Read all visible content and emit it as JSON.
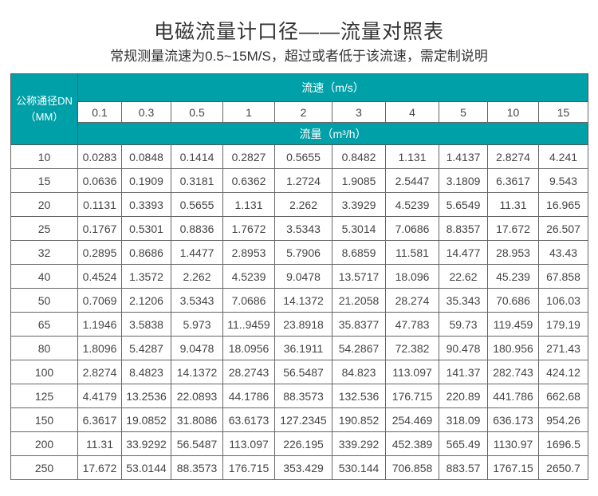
{
  "title": "电磁流量计口径——流量对照表",
  "subtitle": "常规测量流速为0.5~15M/S，超过或者低于该流速，需定制说明",
  "colors": {
    "header_bg": "#00a0a8",
    "header_text": "#ffffff",
    "border": "#666666"
  },
  "table": {
    "dn_header_line1": "公称通径DN",
    "dn_header_line2": "（MM）",
    "velocity_header": "流速（m/s）",
    "flow_header": "流量（m³/h）",
    "velocities": [
      "0.1",
      "0.3",
      "0.5",
      "1",
      "2",
      "3",
      "4",
      "5",
      "10",
      "15"
    ],
    "rows": [
      {
        "dn": "10",
        "values": [
          "0.0283",
          "0.0848",
          "0.1414",
          "0.2827",
          "0.5655",
          "0.8482",
          "1.131",
          "1.4137",
          "2.8274",
          "4.241"
        ]
      },
      {
        "dn": "15",
        "values": [
          "0.0636",
          "0.1909",
          "0.3181",
          "0.6362",
          "1.2724",
          "1.9085",
          "2.5447",
          "3.1809",
          "6.3617",
          "9.543"
        ]
      },
      {
        "dn": "20",
        "values": [
          "0.1131",
          "0.3393",
          "0.5655",
          "1.131",
          "2.262",
          "3.3929",
          "4.5239",
          "5.6549",
          "11.31",
          "16.965"
        ]
      },
      {
        "dn": "25",
        "values": [
          "0.1767",
          "0.5301",
          "0.8836",
          "1.7672",
          "3.5343",
          "5.3014",
          "7.0686",
          "8.8357",
          "17.672",
          "26.507"
        ]
      },
      {
        "dn": "32",
        "values": [
          "0.2895",
          "0.8686",
          "1.4477",
          "2.8953",
          "5.7906",
          "8.6859",
          "11.581",
          "14.477",
          "28.953",
          "43.43"
        ]
      },
      {
        "dn": "40",
        "values": [
          "0.4524",
          "1.3572",
          "2.262",
          "4.5239",
          "9.0478",
          "13.5717",
          "18.096",
          "22.62",
          "45.239",
          "67.858"
        ]
      },
      {
        "dn": "50",
        "values": [
          "0.7069",
          "2.1206",
          "3.5343",
          "7.0686",
          "14.1372",
          "21.2058",
          "28.274",
          "35.343",
          "70.686",
          "106.03"
        ]
      },
      {
        "dn": "65",
        "values": [
          "1.1946",
          "3.5838",
          "5.973",
          "11..9459",
          "23.8918",
          "35.8377",
          "47.783",
          "59.73",
          "119.459",
          "179.19"
        ]
      },
      {
        "dn": "80",
        "values": [
          "1.8096",
          "5.4287",
          "9.0478",
          "18.0956",
          "36.1911",
          "54.2867",
          "72.382",
          "90.478",
          "180.956",
          "271.43"
        ]
      },
      {
        "dn": "100",
        "values": [
          "2.8274",
          "8.4823",
          "14.1372",
          "28.2743",
          "56.5487",
          "84.823",
          "113.097",
          "141.37",
          "282.743",
          "424.12"
        ]
      },
      {
        "dn": "125",
        "values": [
          "4.4179",
          "13.2536",
          "22.0893",
          "44.1786",
          "88.3573",
          "132.536",
          "176.715",
          "220.89",
          "441.786",
          "662.68"
        ]
      },
      {
        "dn": "150",
        "values": [
          "6.3617",
          "19.0852",
          "31.8086",
          "63.6173",
          "127.2345",
          "190.852",
          "254.469",
          "318.09",
          "636.173",
          "954.26"
        ]
      },
      {
        "dn": "200",
        "values": [
          "11.31",
          "33.9292",
          "56.5487",
          "113.097",
          "226.195",
          "339.292",
          "452.389",
          "565.49",
          "1130.97",
          "1696.5"
        ]
      },
      {
        "dn": "250",
        "values": [
          "17.672",
          "53.0144",
          "88.3573",
          "176.715",
          "353.429",
          "530.144",
          "706.858",
          "883.57",
          "1767.15",
          "2650.7"
        ]
      }
    ]
  }
}
